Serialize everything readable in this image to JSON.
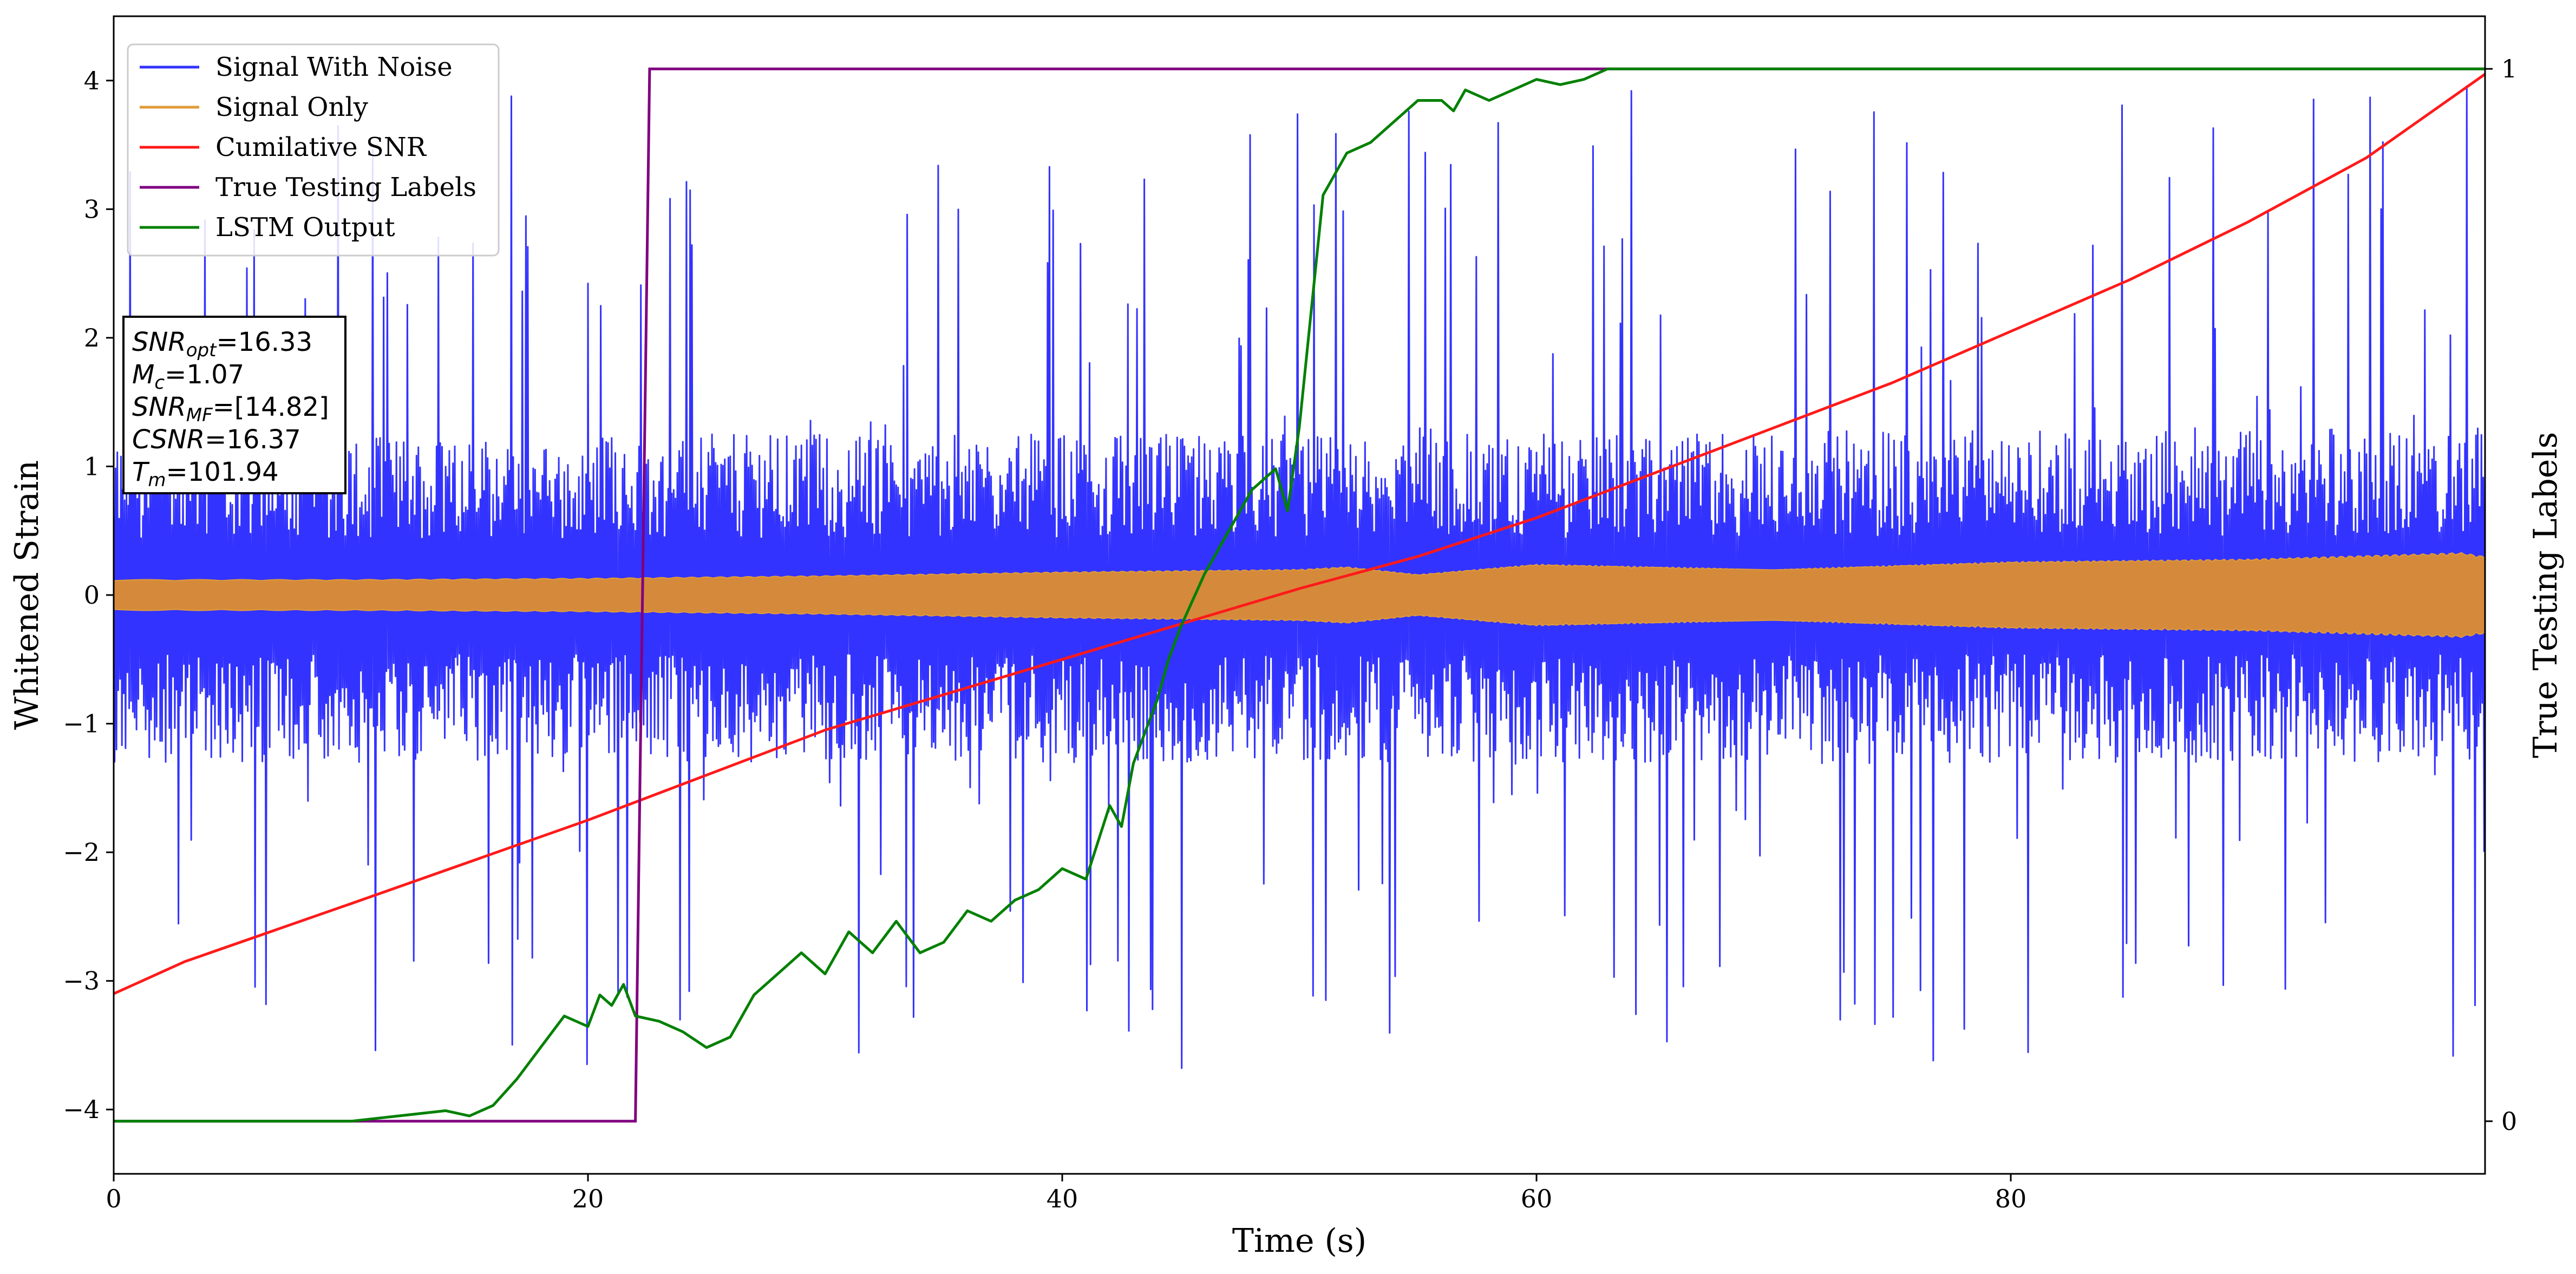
{
  "chart_data": {
    "type": "line",
    "title": "",
    "xlabel": "Time (s)",
    "ylabel": "Whitened Strain",
    "ylabel_right": "True Testing Labels",
    "xlim": [
      0,
      100
    ],
    "ylim": [
      -4.5,
      4.5
    ],
    "ylim_right": [
      -0.05,
      1.05
    ],
    "x_ticks": [
      0,
      20,
      40,
      60,
      80
    ],
    "x_tick_labels": [
      "0",
      "20",
      "40",
      "60",
      "80"
    ],
    "y_ticks": [
      -4,
      -3,
      -2,
      -1,
      0,
      1,
      2,
      3,
      4
    ],
    "y_tick_labels": [
      "−4",
      "−3",
      "−2",
      "−1",
      "0",
      "1",
      "2",
      "3",
      "4"
    ],
    "y_ticks_right": [
      0,
      1
    ],
    "y_tick_labels_right": [
      "0",
      "1"
    ],
    "grid": false,
    "legend_placement": "top-left",
    "series": [
      {
        "name": "Signal With Noise",
        "color": "#3333ff",
        "axis": "left",
        "style": "dense noise band",
        "x": [
          0,
          20,
          40,
          60,
          80,
          100
        ],
        "typical_upper": [
          1.25,
          1.25,
          1.25,
          1.25,
          1.3,
          1.3
        ],
        "typical_lower": [
          -1.3,
          -1.3,
          -1.3,
          -1.3,
          -1.3,
          -1.3
        ],
        "spike_max": 4.1,
        "spike_min": -3.85
      },
      {
        "name": "Signal Only",
        "color": "#e09a3a",
        "axis": "left",
        "style": "chirp envelope",
        "x": [
          0,
          10,
          20,
          30,
          40,
          50,
          52,
          55,
          60,
          70,
          80,
          90,
          99,
          100
        ],
        "envelope": [
          0.12,
          0.12,
          0.13,
          0.15,
          0.18,
          0.2,
          0.22,
          0.16,
          0.24,
          0.2,
          0.26,
          0.28,
          0.33,
          0.3
        ]
      },
      {
        "name": "Cumilative SNR",
        "color": "#ff1a1a",
        "axis": "left",
        "x": [
          0,
          3,
          10,
          20,
          30,
          40,
          50,
          55,
          60,
          65,
          70,
          75,
          80,
          85,
          90,
          95,
          100
        ],
        "y": [
          -3.1,
          -2.85,
          -2.4,
          -1.75,
          -1.05,
          -0.5,
          0.05,
          0.3,
          0.6,
          0.95,
          1.3,
          1.65,
          2.05,
          2.45,
          2.9,
          3.4,
          4.05
        ]
      },
      {
        "name": "True Testing Labels",
        "color": "#800080",
        "axis": "right",
        "x": [
          0,
          22.0,
          22.6,
          100
        ],
        "y": [
          0,
          0,
          1,
          1
        ]
      },
      {
        "name": "LSTM Output",
        "color": "#008000",
        "axis": "right",
        "x": [
          0,
          10,
          12,
          14,
          15,
          16,
          17,
          18,
          19,
          20,
          20.5,
          21,
          21.5,
          22,
          23,
          24,
          25,
          26,
          27,
          28,
          29,
          30,
          31,
          32,
          33,
          34,
          35,
          36,
          37,
          38,
          39,
          40,
          41,
          42,
          42.5,
          43,
          44,
          44.5,
          45,
          46,
          47,
          48,
          49,
          49.5,
          50,
          51,
          52,
          53,
          54,
          55,
          56,
          56.5,
          57,
          58,
          59,
          60,
          61,
          62,
          63,
          64,
          65,
          66,
          67,
          68,
          100
        ],
        "y": [
          0,
          0,
          0.005,
          0.01,
          0.005,
          0.015,
          0.04,
          0.07,
          0.1,
          0.09,
          0.12,
          0.11,
          0.13,
          0.1,
          0.095,
          0.085,
          0.07,
          0.08,
          0.12,
          0.14,
          0.16,
          0.14,
          0.18,
          0.16,
          0.19,
          0.16,
          0.17,
          0.2,
          0.19,
          0.21,
          0.22,
          0.24,
          0.23,
          0.3,
          0.28,
          0.34,
          0.4,
          0.44,
          0.47,
          0.52,
          0.56,
          0.6,
          0.62,
          0.58,
          0.66,
          0.88,
          0.92,
          0.93,
          0.95,
          0.97,
          0.97,
          0.96,
          0.98,
          0.97,
          0.98,
          0.99,
          0.985,
          0.99,
          1,
          1,
          1,
          1,
          1,
          1,
          1
        ]
      }
    ],
    "annotation_box": {
      "placement": "upper-left",
      "lines": [
        {
          "var": "SNR",
          "sub": "opt",
          "text": "=16.33"
        },
        {
          "var": "M",
          "sub": "c",
          "text": "=1.07"
        },
        {
          "var": "SNR",
          "sub": "MF",
          "text": "=[14.82]"
        },
        {
          "var": "CSNR",
          "sub": "",
          "text": "=16.37"
        },
        {
          "var": "T",
          "sub": "m",
          "text": "=101.94"
        }
      ]
    }
  }
}
